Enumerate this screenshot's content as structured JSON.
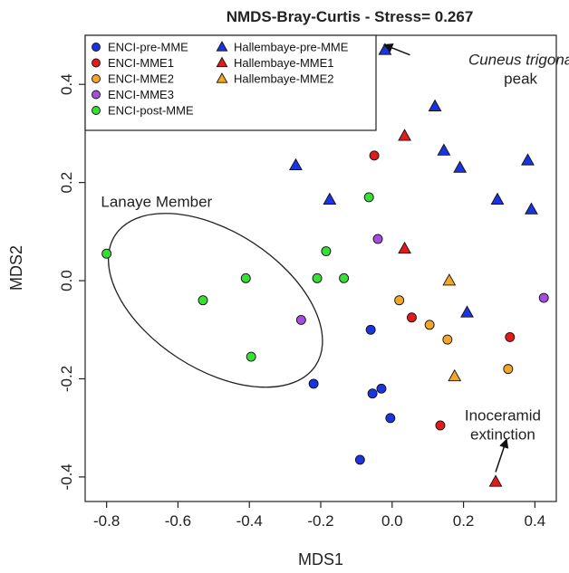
{
  "chart_data": {
    "type": "scatter",
    "title": "NMDS-Bray-Curtis - Stress= 0.267",
    "xlabel": "MDS1",
    "ylabel": "MDS2",
    "xlim": [
      -0.86,
      0.46
    ],
    "ylim": [
      -0.45,
      0.5
    ],
    "x_ticks": [
      "-0.8",
      "-0.6",
      "-0.4",
      "-0.2",
      "0.0",
      "0.2",
      "0.4"
    ],
    "x_tick_values": [
      -0.8,
      -0.6,
      -0.4,
      -0.2,
      0.0,
      0.2,
      0.4
    ],
    "y_ticks": [
      "-0.4",
      "-0.2",
      "0.0",
      "0.2",
      "0.4"
    ],
    "y_tick_values": [
      -0.4,
      -0.2,
      0.0,
      0.2,
      0.4
    ],
    "grid": false,
    "legend_position": "top-left",
    "colors": {
      "blue": "#1a35e0",
      "red": "#e01b1b",
      "orange": "#f2a526",
      "purple": "#a64de0",
      "green": "#33e033"
    },
    "series": [
      {
        "name": "ENCI-pre-MME",
        "marker": "circle",
        "color": "#1a35e0",
        "points": [
          [
            -0.06,
            -0.1
          ],
          [
            -0.22,
            -0.21
          ],
          [
            -0.055,
            -0.23
          ],
          [
            -0.03,
            -0.22
          ],
          [
            -0.005,
            -0.28
          ],
          [
            -0.09,
            -0.365
          ]
        ]
      },
      {
        "name": "ENCI-MME1",
        "marker": "circle",
        "color": "#e01b1b",
        "points": [
          [
            -0.05,
            0.255
          ],
          [
            0.055,
            -0.075
          ],
          [
            0.33,
            -0.115
          ],
          [
            0.135,
            -0.295
          ]
        ]
      },
      {
        "name": "ENCI-MME2",
        "marker": "circle",
        "color": "#f2a526",
        "points": [
          [
            0.02,
            -0.04
          ],
          [
            0.105,
            -0.09
          ],
          [
            0.155,
            -0.12
          ],
          [
            0.325,
            -0.18
          ]
        ]
      },
      {
        "name": "ENCI-MME3",
        "marker": "circle",
        "color": "#a64de0",
        "points": [
          [
            -0.04,
            0.085
          ],
          [
            -0.255,
            -0.08
          ],
          [
            0.425,
            -0.035
          ]
        ]
      },
      {
        "name": "ENCI-post-MME",
        "marker": "circle",
        "color": "#33e033",
        "points": [
          [
            -0.8,
            0.055
          ],
          [
            -0.53,
            -0.04
          ],
          [
            -0.41,
            0.005
          ],
          [
            -0.395,
            -0.155
          ],
          [
            -0.065,
            0.17
          ],
          [
            -0.185,
            0.06
          ],
          [
            -0.21,
            0.005
          ],
          [
            -0.135,
            0.005
          ]
        ]
      },
      {
        "name": "Hallembaye-pre-MME",
        "marker": "triangle",
        "color": "#1a35e0",
        "points": [
          [
            -0.02,
            0.47
          ],
          [
            0.12,
            0.355
          ],
          [
            0.145,
            0.265
          ],
          [
            0.19,
            0.23
          ],
          [
            -0.27,
            0.235
          ],
          [
            -0.175,
            0.165
          ],
          [
            0.295,
            0.165
          ],
          [
            0.38,
            0.245
          ],
          [
            0.39,
            0.145
          ],
          [
            0.21,
            -0.065
          ]
        ]
      },
      {
        "name": "Hallembaye-MME1",
        "marker": "triangle",
        "color": "#e01b1b",
        "points": [
          [
            0.035,
            0.295
          ],
          [
            0.035,
            0.065
          ],
          [
            0.29,
            -0.41
          ]
        ]
      },
      {
        "name": "Hallembaye-MME2",
        "marker": "triangle",
        "color": "#f2a526",
        "points": [
          [
            0.16,
            0.0
          ],
          [
            0.175,
            -0.195
          ]
        ]
      }
    ],
    "ellipse": {
      "cx": -0.495,
      "cy": -0.04,
      "rx": 0.335,
      "ry": 0.14,
      "rotation_deg": -33
    },
    "annotations": [
      {
        "id": "lanaye",
        "lines": [
          "Lanaye Member"
        ],
        "italic": false,
        "x": -0.66,
        "y": 0.15
      },
      {
        "id": "cuneus",
        "lines": [
          "Cuneus trigona",
          "peak"
        ],
        "italic_first": true,
        "x": 0.36,
        "y": 0.44,
        "arrow_from": [
          0.05,
          0.46
        ],
        "arrow_to": [
          -0.02,
          0.48
        ]
      },
      {
        "id": "inoceramid",
        "lines": [
          "Inoceramid",
          "extinction"
        ],
        "italic": false,
        "x": 0.31,
        "y": -0.285,
        "arrow_from": [
          0.29,
          -0.39
        ],
        "arrow_to": [
          0.32,
          -0.325
        ]
      }
    ]
  }
}
